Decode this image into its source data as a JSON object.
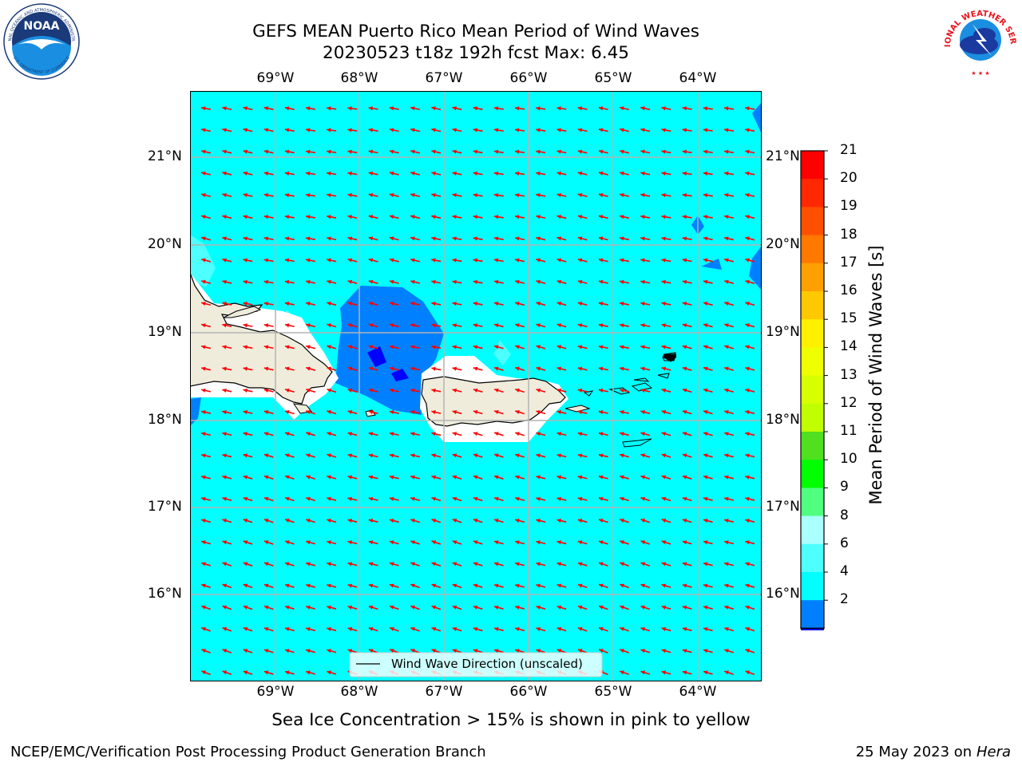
{
  "header": {
    "title_line1": "GEFS MEAN Puerto Rico Mean Period of Wind Waves",
    "title_line2": "20230523 t18z 192h fcst   Max: 6.45"
  },
  "logos": {
    "left": {
      "name": "NOAA",
      "ring_text": "NATIONAL OCEANIC AND ATMOSPHERIC ADMINISTRATION",
      "bottom_text": "U.S. DEPARTMENT OF COMMERCE"
    },
    "right": {
      "name": "NATIONAL WEATHER SERVICE"
    }
  },
  "map": {
    "lon_labels": [
      "69°W",
      "68°W",
      "67°W",
      "66°W",
      "65°W",
      "64°W"
    ],
    "lat_labels": [
      "21°N",
      "20°N",
      "19°N",
      "18°N",
      "17°N",
      "16°N"
    ],
    "legend_text": "Wind Wave Direction (unscaled)",
    "colors": {
      "background_4_6": "#00ffff",
      "band_2_4": "#0080ff",
      "below_2": "#0000ff",
      "band_6_8": "#4dffff",
      "land": "#efecdc",
      "arrows": "#ff0000",
      "grid": "#b3b3b3"
    }
  },
  "colorbar": {
    "label": "Mean Period of Wind Waves [s]",
    "ticks": [
      "21",
      "20",
      "19",
      "18",
      "17",
      "16",
      "15",
      "14",
      "13",
      "12",
      "11",
      "10",
      "9",
      "8",
      "6",
      "4",
      "2"
    ],
    "colors": [
      "#ff0000",
      "#ff2800",
      "#ff5000",
      "#ff7800",
      "#ffa000",
      "#ffc800",
      "#fff000",
      "#eeff00",
      "#d8ff00",
      "#c0ff00",
      "#50e020",
      "#00ff00",
      "#50ff80",
      "#aaffff",
      "#4dffff",
      "#00ffff",
      "#0080ff"
    ],
    "extend_color": "#0000ff"
  },
  "notes": {
    "ice": "Sea Ice Concentration > 15% is shown in pink to yellow"
  },
  "footer": {
    "left": "NCEP/EMC/Verification Post Processing Product Generation Branch",
    "date": "25 May 2023 on",
    "machine": "Hera"
  }
}
